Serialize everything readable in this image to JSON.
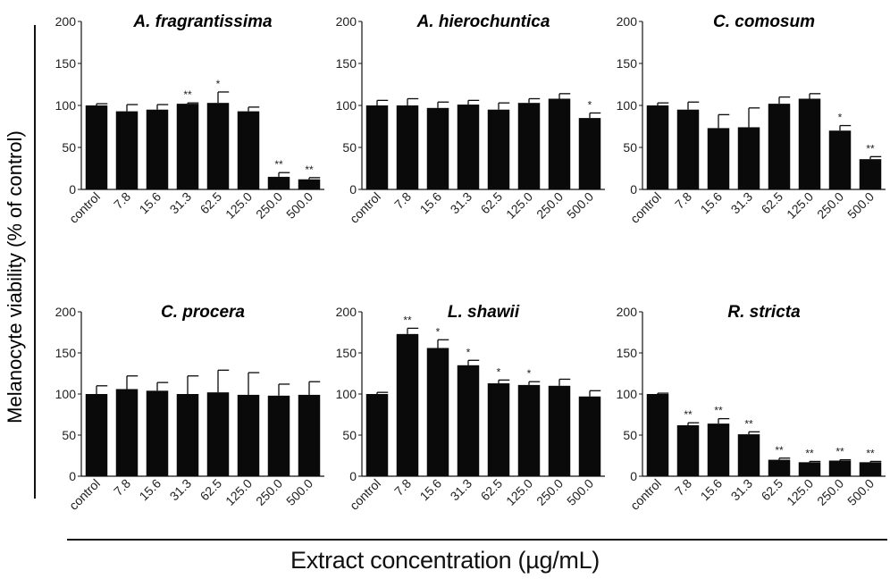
{
  "figure": {
    "ylabel": "Melanocyte viability (% of control)",
    "xlabel": "Extract concentration (µg/mL)"
  },
  "chart_data": [
    {
      "type": "bar",
      "title": "A. fragrantissima",
      "categories": [
        "control",
        "7.8",
        "15.6",
        "31.3",
        "62.5",
        "125.0",
        "250.0",
        "500.0"
      ],
      "values": [
        100,
        93,
        95,
        102,
        103,
        93,
        15,
        12
      ],
      "errors": [
        2,
        8,
        6,
        1,
        13,
        5,
        5,
        2
      ],
      "significance": [
        "",
        "",
        "",
        "**",
        "*",
        "",
        "**",
        "**"
      ],
      "ylim": [
        0,
        200
      ],
      "yticks": [
        0,
        50,
        100,
        150,
        200
      ]
    },
    {
      "type": "bar",
      "title": "A. hierochuntica",
      "categories": [
        "control",
        "7.8",
        "15.6",
        "31.3",
        "62.5",
        "125.0",
        "250.0",
        "500.0"
      ],
      "values": [
        100,
        100,
        97,
        101,
        95,
        103,
        108,
        85
      ],
      "errors": [
        6,
        8,
        7,
        5,
        8,
        5,
        6,
        6
      ],
      "significance": [
        "",
        "",
        "",
        "",
        "",
        "",
        "",
        "*"
      ],
      "ylim": [
        0,
        200
      ],
      "yticks": [
        0,
        50,
        100,
        150,
        200
      ]
    },
    {
      "type": "bar",
      "title": "C. comosum",
      "categories": [
        "control",
        "7.8",
        "15.6",
        "31.3",
        "62.5",
        "125.0",
        "250.0",
        "500.0"
      ],
      "values": [
        100,
        95,
        73,
        74,
        102,
        108,
        70,
        36
      ],
      "errors": [
        3,
        9,
        16,
        23,
        8,
        6,
        6,
        3
      ],
      "significance": [
        "",
        "",
        "",
        "",
        "",
        "",
        "*",
        "**"
      ],
      "ylim": [
        0,
        200
      ],
      "yticks": [
        0,
        50,
        100,
        150,
        200
      ]
    },
    {
      "type": "bar",
      "title": "C. procera",
      "categories": [
        "control",
        "7.8",
        "15.6",
        "31.3",
        "62.5",
        "125.0",
        "250.0",
        "500.0"
      ],
      "values": [
        100,
        106,
        104,
        100,
        102,
        99,
        98,
        99
      ],
      "errors": [
        10,
        16,
        10,
        22,
        27,
        27,
        14,
        16
      ],
      "significance": [
        "",
        "",
        "",
        "",
        "",
        "",
        "",
        ""
      ],
      "ylim": [
        0,
        200
      ],
      "yticks": [
        0,
        50,
        100,
        150,
        200
      ]
    },
    {
      "type": "bar",
      "title": "L. shawii",
      "categories": [
        "control",
        "7.8",
        "15.6",
        "31.3",
        "62.5",
        "125.0",
        "250.0",
        "500.0"
      ],
      "values": [
        100,
        173,
        156,
        135,
        113,
        111,
        110,
        97
      ],
      "errors": [
        2,
        7,
        10,
        6,
        4,
        4,
        8,
        7
      ],
      "significance": [
        "",
        "**",
        "*",
        "*",
        "*",
        "*",
        "",
        ""
      ],
      "ylim": [
        0,
        200
      ],
      "yticks": [
        0,
        50,
        100,
        150,
        200
      ]
    },
    {
      "type": "bar",
      "title": "R. stricta",
      "categories": [
        "control",
        "7.8",
        "15.6",
        "31.3",
        "62.5",
        "125.0",
        "250.0",
        "500.0"
      ],
      "values": [
        100,
        62,
        64,
        51,
        20,
        17,
        19,
        17
      ],
      "errors": [
        1,
        3,
        6,
        3,
        2,
        1,
        1,
        1
      ],
      "significance": [
        "",
        "**",
        "**",
        "**",
        "**",
        "**",
        "**",
        "**"
      ],
      "ylim": [
        0,
        200
      ],
      "yticks": [
        0,
        50,
        100,
        150,
        200
      ]
    }
  ]
}
